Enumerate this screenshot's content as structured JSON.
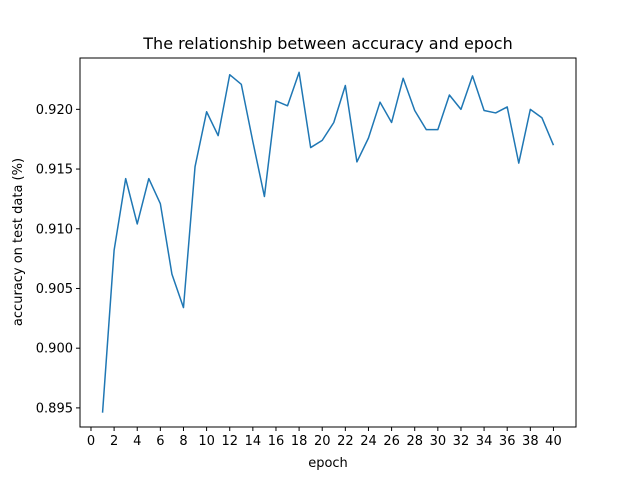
{
  "chart_data": {
    "type": "line",
    "title": "The relationship between accuracy and epoch",
    "xlabel": "epoch",
    "ylabel": "accuracy on test data (%)",
    "xlim": [
      -0.95,
      41.95
    ],
    "ylim": [
      0.8934,
      0.9243
    ],
    "grid": false,
    "x_ticks": [
      0,
      2,
      4,
      6,
      8,
      10,
      12,
      14,
      16,
      18,
      20,
      22,
      24,
      26,
      28,
      30,
      32,
      34,
      36,
      38,
      40
    ],
    "x_tick_labels": [
      "0",
      "2",
      "4",
      "6",
      "8",
      "10",
      "12",
      "14",
      "16",
      "18",
      "20",
      "22",
      "24",
      "26",
      "28",
      "30",
      "32",
      "34",
      "36",
      "38",
      "40"
    ],
    "y_ticks": [
      0.895,
      0.9,
      0.905,
      0.91,
      0.915,
      0.92
    ],
    "y_tick_labels": [
      "0.895",
      "0.900",
      "0.905",
      "0.910",
      "0.915",
      "0.920"
    ],
    "colors": {
      "line": "#1f77b4"
    },
    "series": [
      {
        "x": [
          1,
          2,
          3,
          4,
          5,
          6,
          7,
          8,
          9,
          10,
          11,
          12,
          13,
          14,
          15,
          16,
          17,
          18,
          19,
          20,
          21,
          22,
          23,
          24,
          25,
          26,
          27,
          28,
          29,
          30,
          31,
          32,
          33,
          34,
          35,
          36,
          37,
          38,
          39,
          40
        ],
        "values": [
          0.8946,
          0.9082,
          0.9142,
          0.9104,
          0.9142,
          0.9121,
          0.9062,
          0.9034,
          0.9152,
          0.9198,
          0.9178,
          0.9229,
          0.9221,
          0.9173,
          0.9127,
          0.9207,
          0.9203,
          0.9231,
          0.9168,
          0.9174,
          0.9189,
          0.922,
          0.9156,
          0.9176,
          0.9206,
          0.9189,
          0.9226,
          0.9199,
          0.9183,
          0.9183,
          0.9212,
          0.92,
          0.9228,
          0.9199,
          0.9197,
          0.9202,
          0.9155,
          0.92,
          0.9193,
          0.917
        ]
      }
    ]
  }
}
